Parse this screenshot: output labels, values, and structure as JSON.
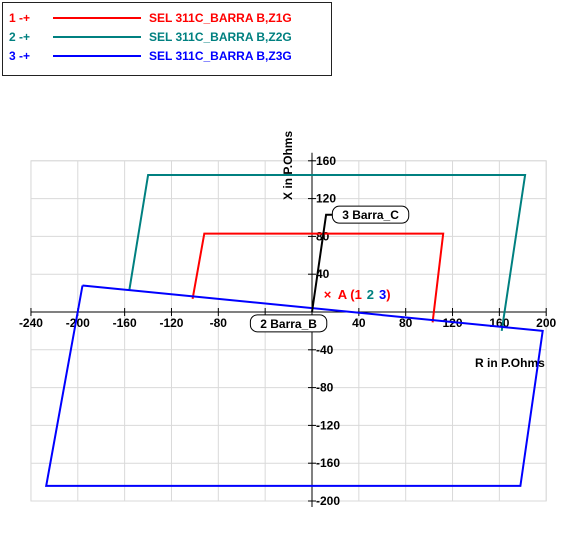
{
  "legend": {
    "items": [
      {
        "num": "1 -+",
        "name": "SEL 311C_BARRA B,Z1G",
        "color": "#ff0000"
      },
      {
        "num": "2 -+",
        "name": "SEL 311C_BARRA B,Z2G",
        "color": "#008080"
      },
      {
        "num": "3 -+",
        "name": "SEL 311C_BARRA B,Z3G",
        "color": "#0000ff"
      }
    ]
  },
  "chart_data": {
    "type": "line",
    "xlabel": "R in P.Ohms",
    "ylabel": "X in P.Ohms",
    "xlim": [
      -240,
      200
    ],
    "ylim": [
      -200,
      160
    ],
    "x_ticks": [
      -240,
      -200,
      -160,
      -120,
      -80,
      -40,
      0,
      40,
      80,
      120,
      160,
      200
    ],
    "y_ticks": [
      -200,
      -160,
      -120,
      -80,
      -40,
      0,
      40,
      80,
      120,
      160
    ],
    "x_tick_labels": [
      "-240",
      "-200",
      "-160",
      "-120",
      "-80",
      "-40",
      "",
      "40",
      "80",
      "120",
      "160",
      "200"
    ],
    "y_tick_labels": [
      "-200",
      "-160",
      "-120",
      "-80",
      "-40",
      "",
      "40",
      "80",
      "120",
      "160"
    ],
    "grid": true,
    "series": [
      {
        "name": "SEL 311C_BARRA B,Z1G",
        "color": "#ff0000",
        "points": [
          [
            -102,
            14
          ],
          [
            -92,
            83
          ],
          [
            112,
            83
          ],
          [
            103,
            -11
          ]
        ]
      },
      {
        "name": "SEL 311C_BARRA B,Z2G",
        "color": "#008080",
        "points": [
          [
            -156,
            23
          ],
          [
            -140,
            145
          ],
          [
            182,
            145
          ],
          [
            162,
            -20
          ]
        ]
      },
      {
        "name": "SEL 311C_BARRA B,Z3G",
        "color": "#0000ff",
        "points": [
          [
            -196,
            28
          ],
          [
            -227,
            -184
          ],
          [
            178,
            -184
          ],
          [
            197,
            -20
          ],
          [
            -196,
            28
          ]
        ]
      },
      {
        "name": "",
        "color": "#000000",
        "points": [
          [
            0,
            0
          ],
          [
            12,
            103
          ],
          [
            22,
            103
          ]
        ]
      }
    ],
    "annotations": [
      {
        "text": "3 Barra_C",
        "x": 50,
        "y": 103,
        "color": "#000000",
        "boxed": true
      },
      {
        "text": "2 Barra_B",
        "x": -20,
        "y": -12,
        "color": "#000000",
        "boxed": true
      }
    ],
    "marker_label": {
      "x": 10,
      "y": 18,
      "marker": "×",
      "marker_color": "#ff0000",
      "parts": [
        {
          "text": "A (",
          "color": "#ff0000"
        },
        {
          "text": "1",
          "color": "#ff0000"
        },
        {
          "text": "2",
          "color": "#008080"
        },
        {
          "text": "3",
          "color": "#0000ff"
        },
        {
          "text": ")",
          "color": "#ff0000"
        }
      ]
    }
  }
}
